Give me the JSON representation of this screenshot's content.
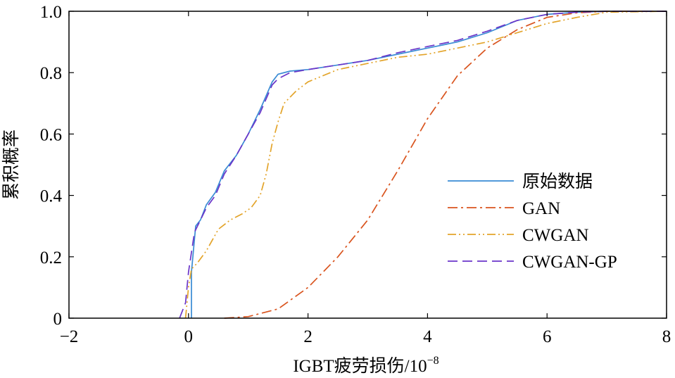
{
  "chart_data": {
    "type": "line",
    "title": "",
    "xlabel": "IGBT疲劳损伤/10",
    "xlabel_exponent": "−8",
    "ylabel": "累积概率",
    "xlim": [
      -2,
      8
    ],
    "ylim": [
      0,
      1.0
    ],
    "x_ticks": [
      -2,
      0,
      2,
      4,
      6,
      8
    ],
    "x_tick_labels": [
      "−2",
      "0",
      "2",
      "4",
      "6",
      "8"
    ],
    "y_ticks": [
      0,
      0.2,
      0.4,
      0.6,
      0.8,
      1.0
    ],
    "y_tick_labels": [
      "0",
      "0.2",
      "0.4",
      "0.6",
      "0.8",
      "1.0"
    ],
    "grid": false,
    "legend_position": "lower-right",
    "series": [
      {
        "name": "原始数据",
        "color": "#3A8BD4",
        "style": "solid",
        "x": [
          0.05,
          0.05,
          0.12,
          0.2,
          0.3,
          0.45,
          0.6,
          0.8,
          1.0,
          1.2,
          1.4,
          1.5,
          1.7,
          2.0,
          2.5,
          3.0,
          3.5,
          4.0,
          4.5,
          5.0,
          5.5,
          6.0,
          6.5,
          7.0,
          8.0
        ],
        "y": [
          0,
          0.15,
          0.3,
          0.32,
          0.37,
          0.41,
          0.48,
          0.53,
          0.6,
          0.68,
          0.77,
          0.795,
          0.805,
          0.81,
          0.825,
          0.84,
          0.86,
          0.88,
          0.9,
          0.93,
          0.97,
          0.99,
          0.997,
          1.0,
          1.0
        ]
      },
      {
        "name": "GAN",
        "color": "#D9541E",
        "style": "dashdot",
        "x": [
          0.6,
          1.0,
          1.5,
          2.0,
          2.5,
          3.0,
          3.5,
          4.0,
          4.5,
          5.0,
          5.5,
          6.0,
          6.5,
          7.0,
          8.0
        ],
        "y": [
          0,
          0.005,
          0.03,
          0.1,
          0.2,
          0.32,
          0.48,
          0.65,
          0.79,
          0.88,
          0.94,
          0.98,
          0.995,
          1.0,
          1.0
        ]
      },
      {
        "name": "CWGAN",
        "color": "#E3A42A",
        "style": "dashdotdot",
        "x": [
          -0.05,
          0.0,
          0.05,
          0.15,
          0.3,
          0.5,
          0.7,
          0.9,
          1.05,
          1.2,
          1.3,
          1.4,
          1.5,
          1.6,
          1.8,
          2.0,
          2.5,
          3.0,
          3.5,
          4.0,
          4.5,
          5.0,
          5.5,
          6.0,
          6.5,
          7.0,
          8.0
        ],
        "y": [
          0,
          0.1,
          0.16,
          0.18,
          0.22,
          0.29,
          0.32,
          0.34,
          0.36,
          0.4,
          0.47,
          0.57,
          0.64,
          0.7,
          0.74,
          0.77,
          0.81,
          0.83,
          0.85,
          0.86,
          0.88,
          0.9,
          0.93,
          0.96,
          0.98,
          0.997,
          1.0
        ]
      },
      {
        "name": "CWGAN-GP",
        "color": "#6A35C9",
        "style": "dashed",
        "x": [
          -0.15,
          -0.05,
          0.0,
          0.1,
          0.2,
          0.3,
          0.45,
          0.6,
          0.8,
          1.0,
          1.2,
          1.4,
          1.5,
          1.7,
          2.0,
          2.5,
          3.0,
          3.5,
          4.0,
          4.5,
          5.0,
          5.5,
          6.0,
          6.5,
          7.0,
          8.0
        ],
        "y": [
          0,
          0.05,
          0.15,
          0.28,
          0.32,
          0.36,
          0.4,
          0.47,
          0.53,
          0.6,
          0.67,
          0.76,
          0.78,
          0.8,
          0.81,
          0.825,
          0.84,
          0.865,
          0.885,
          0.905,
          0.935,
          0.97,
          0.99,
          0.997,
          1.0,
          1.0
        ]
      }
    ]
  }
}
